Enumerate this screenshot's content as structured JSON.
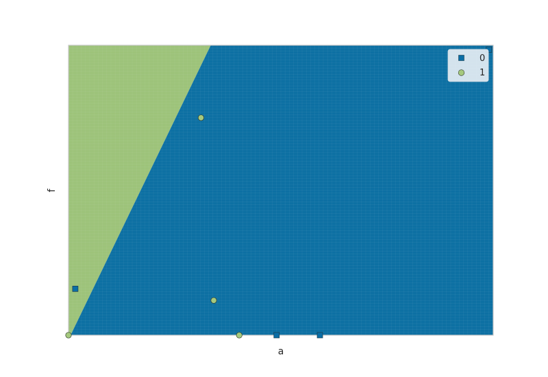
{
  "chart_data": {
    "type": "scatter",
    "chart_kind": "decision-boundary",
    "title": "",
    "xlabel": "a",
    "ylabel": "f",
    "xlim": [
      0,
      1
    ],
    "ylim": [
      0,
      1
    ],
    "grid": true,
    "legend_position": "top-right",
    "regions": [
      {
        "class": "1",
        "color": "#9dc37a",
        "polygon": [
          [
            0,
            1
          ],
          [
            0.335,
            1
          ],
          [
            0.005,
            0
          ],
          [
            0,
            0
          ]
        ]
      },
      {
        "class": "0",
        "color": "#0d70a3",
        "polygon": [
          [
            0.335,
            1
          ],
          [
            1,
            1
          ],
          [
            1,
            0
          ],
          [
            0.005,
            0
          ]
        ]
      }
    ],
    "series": [
      {
        "name": "0",
        "marker": "square",
        "color": "#0a6ea6",
        "points": [
          [
            0.016,
            0.16
          ],
          [
            0.49,
            0.0
          ],
          [
            0.592,
            0.0
          ],
          [
            0.99,
            0.985
          ]
        ]
      },
      {
        "name": "1",
        "marker": "circle",
        "color": "#a5c97e",
        "points": [
          [
            0.312,
            0.75
          ],
          [
            0.342,
            0.12
          ],
          [
            0.402,
            0.0
          ],
          [
            0.0,
            0.0
          ]
        ]
      }
    ]
  }
}
